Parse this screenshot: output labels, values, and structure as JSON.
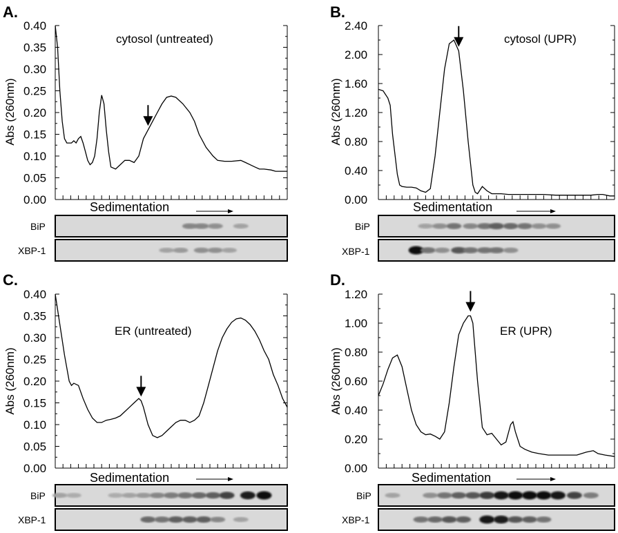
{
  "chart_data": [
    {
      "panel": "A.",
      "type": "line",
      "annotation": "cytosol (untreated)",
      "ylabel": "Abs (260nm)",
      "xlabel": "Sedimentation",
      "ylim": [
        0,
        0.4
      ],
      "yticks": [
        "0.00",
        "0.05",
        "0.10",
        "0.15",
        "0.20",
        "0.25",
        "0.30",
        "0.35",
        "0.40"
      ],
      "xlim": [
        0,
        1
      ],
      "arrow_at": 0.4,
      "x": [
        0.0,
        0.01,
        0.02,
        0.03,
        0.04,
        0.05,
        0.07,
        0.08,
        0.09,
        0.1,
        0.11,
        0.12,
        0.13,
        0.14,
        0.15,
        0.16,
        0.17,
        0.18,
        0.19,
        0.2,
        0.21,
        0.22,
        0.23,
        0.24,
        0.26,
        0.28,
        0.3,
        0.32,
        0.34,
        0.36,
        0.38,
        0.4,
        0.42,
        0.44,
        0.46,
        0.48,
        0.5,
        0.52,
        0.55,
        0.58,
        0.6,
        0.62,
        0.65,
        0.68,
        0.7,
        0.73,
        0.76,
        0.8,
        0.82,
        0.84,
        0.86,
        0.88,
        0.9,
        0.93,
        0.95,
        0.97,
        1.0
      ],
      "y": [
        0.4,
        0.35,
        0.25,
        0.18,
        0.14,
        0.13,
        0.13,
        0.135,
        0.13,
        0.14,
        0.145,
        0.13,
        0.11,
        0.09,
        0.08,
        0.085,
        0.1,
        0.14,
        0.2,
        0.24,
        0.22,
        0.16,
        0.11,
        0.075,
        0.07,
        0.08,
        0.09,
        0.09,
        0.085,
        0.1,
        0.14,
        0.16,
        0.18,
        0.2,
        0.22,
        0.235,
        0.238,
        0.235,
        0.22,
        0.2,
        0.18,
        0.15,
        0.12,
        0.1,
        0.09,
        0.088,
        0.088,
        0.09,
        0.085,
        0.08,
        0.075,
        0.07,
        0.07,
        0.068,
        0.065,
        0.065,
        0.065
      ],
      "blots": [
        {
          "label": "BiP",
          "bands": [
            {
              "x": 0.58,
              "i": 0.35
            },
            {
              "x": 0.63,
              "i": 0.35
            },
            {
              "x": 0.69,
              "i": 0.3
            },
            {
              "x": 0.8,
              "i": 0.2
            }
          ]
        },
        {
          "label": "XBP-1",
          "bands": [
            {
              "x": 0.48,
              "i": 0.2
            },
            {
              "x": 0.54,
              "i": 0.25
            },
            {
              "x": 0.63,
              "i": 0.3
            },
            {
              "x": 0.69,
              "i": 0.3
            },
            {
              "x": 0.75,
              "i": 0.2
            }
          ]
        }
      ]
    },
    {
      "panel": "B.",
      "type": "line",
      "annotation": "cytosol (UPR)",
      "ylabel": "Abs (260nm)",
      "xlabel": "Sedimentation",
      "ylim": [
        0,
        2.4
      ],
      "yticks": [
        "0.00",
        "0.40",
        "0.80",
        "1.20",
        "1.60",
        "2.00",
        "2.40"
      ],
      "xlim": [
        0,
        1
      ],
      "arrow_at": 0.34,
      "x": [
        0.0,
        0.02,
        0.04,
        0.05,
        0.06,
        0.08,
        0.09,
        0.1,
        0.12,
        0.14,
        0.16,
        0.18,
        0.2,
        0.22,
        0.24,
        0.26,
        0.28,
        0.3,
        0.32,
        0.34,
        0.36,
        0.38,
        0.4,
        0.41,
        0.42,
        0.44,
        0.46,
        0.48,
        0.5,
        0.52,
        0.55,
        0.6,
        0.65,
        0.7,
        0.75,
        0.8,
        0.85,
        0.9,
        0.93,
        0.95,
        0.98,
        1.0
      ],
      "y": [
        1.52,
        1.5,
        1.4,
        1.3,
        0.9,
        0.35,
        0.2,
        0.18,
        0.17,
        0.17,
        0.16,
        0.12,
        0.1,
        0.15,
        0.6,
        1.2,
        1.8,
        2.15,
        2.2,
        2.05,
        1.5,
        0.8,
        0.2,
        0.1,
        0.08,
        0.18,
        0.12,
        0.08,
        0.08,
        0.08,
        0.07,
        0.07,
        0.07,
        0.07,
        0.06,
        0.06,
        0.06,
        0.06,
        0.07,
        0.07,
        0.05,
        0.05
      ],
      "blots": [
        {
          "label": "BiP",
          "bands": [
            {
              "x": 0.2,
              "i": 0.2
            },
            {
              "x": 0.26,
              "i": 0.3
            },
            {
              "x": 0.32,
              "i": 0.45
            },
            {
              "x": 0.39,
              "i": 0.35
            },
            {
              "x": 0.45,
              "i": 0.45
            },
            {
              "x": 0.5,
              "i": 0.55
            },
            {
              "x": 0.56,
              "i": 0.5
            },
            {
              "x": 0.62,
              "i": 0.45
            },
            {
              "x": 0.68,
              "i": 0.3
            },
            {
              "x": 0.74,
              "i": 0.3
            }
          ]
        },
        {
          "label": "XBP-1",
          "bands": [
            {
              "x": 0.16,
              "i": 1.0
            },
            {
              "x": 0.21,
              "i": 0.45
            },
            {
              "x": 0.27,
              "i": 0.3
            },
            {
              "x": 0.34,
              "i": 0.6
            },
            {
              "x": 0.39,
              "i": 0.45
            },
            {
              "x": 0.45,
              "i": 0.45
            },
            {
              "x": 0.5,
              "i": 0.45
            },
            {
              "x": 0.56,
              "i": 0.3
            }
          ]
        }
      ]
    },
    {
      "panel": "C.",
      "type": "line",
      "annotation": "ER (untreated)",
      "ylabel": "Abs (260nm)",
      "xlabel": "Sedimentation",
      "ylim": [
        0,
        0.4
      ],
      "yticks": [
        "0.00",
        "0.05",
        "0.10",
        "0.15",
        "0.20",
        "0.25",
        "0.30",
        "0.35",
        "0.40"
      ],
      "xlim": [
        0,
        1
      ],
      "arrow_at": 0.37,
      "x": [
        0.0,
        0.02,
        0.04,
        0.06,
        0.07,
        0.08,
        0.1,
        0.12,
        0.14,
        0.16,
        0.18,
        0.2,
        0.22,
        0.24,
        0.26,
        0.28,
        0.3,
        0.32,
        0.34,
        0.36,
        0.37,
        0.38,
        0.4,
        0.42,
        0.44,
        0.46,
        0.48,
        0.5,
        0.52,
        0.54,
        0.56,
        0.58,
        0.6,
        0.62,
        0.64,
        0.66,
        0.68,
        0.7,
        0.72,
        0.74,
        0.76,
        0.78,
        0.8,
        0.82,
        0.84,
        0.86,
        0.88,
        0.9,
        0.92,
        0.94,
        0.96,
        0.98,
        1.0
      ],
      "y": [
        0.4,
        0.33,
        0.26,
        0.2,
        0.19,
        0.195,
        0.19,
        0.16,
        0.135,
        0.115,
        0.105,
        0.105,
        0.11,
        0.112,
        0.115,
        0.12,
        0.13,
        0.14,
        0.15,
        0.16,
        0.155,
        0.14,
        0.1,
        0.075,
        0.07,
        0.075,
        0.085,
        0.095,
        0.105,
        0.11,
        0.11,
        0.105,
        0.11,
        0.12,
        0.15,
        0.19,
        0.23,
        0.27,
        0.3,
        0.32,
        0.335,
        0.343,
        0.345,
        0.34,
        0.33,
        0.315,
        0.295,
        0.27,
        0.25,
        0.215,
        0.19,
        0.16,
        0.14
      ],
      "blots": [
        {
          "label": "BiP",
          "bands": [
            {
              "x": 0.02,
              "i": 0.2
            },
            {
              "x": 0.08,
              "i": 0.15
            },
            {
              "x": 0.26,
              "i": 0.15
            },
            {
              "x": 0.32,
              "i": 0.2
            },
            {
              "x": 0.38,
              "i": 0.25
            },
            {
              "x": 0.44,
              "i": 0.35
            },
            {
              "x": 0.5,
              "i": 0.4
            },
            {
              "x": 0.56,
              "i": 0.45
            },
            {
              "x": 0.62,
              "i": 0.5
            },
            {
              "x": 0.68,
              "i": 0.55
            },
            {
              "x": 0.74,
              "i": 0.7
            },
            {
              "x": 0.83,
              "i": 0.9
            },
            {
              "x": 0.9,
              "i": 1.0
            }
          ]
        },
        {
          "label": "XBP-1",
          "bands": [
            {
              "x": 0.4,
              "i": 0.5
            },
            {
              "x": 0.46,
              "i": 0.45
            },
            {
              "x": 0.52,
              "i": 0.55
            },
            {
              "x": 0.58,
              "i": 0.55
            },
            {
              "x": 0.64,
              "i": 0.55
            },
            {
              "x": 0.7,
              "i": 0.35
            },
            {
              "x": 0.8,
              "i": 0.2
            }
          ]
        }
      ]
    },
    {
      "panel": "D.",
      "type": "line",
      "annotation": "ER (UPR)",
      "ylabel": "Abs (260nm)",
      "xlabel": "Sedimentation",
      "ylim": [
        0,
        1.2
      ],
      "yticks": [
        "0.00",
        "0.20",
        "0.40",
        "0.60",
        "0.80",
        "1.00",
        "1.20"
      ],
      "xlim": [
        0,
        1
      ],
      "arrow_at": 0.39,
      "x": [
        0.0,
        0.02,
        0.04,
        0.06,
        0.08,
        0.1,
        0.12,
        0.14,
        0.16,
        0.18,
        0.2,
        0.22,
        0.24,
        0.26,
        0.28,
        0.3,
        0.32,
        0.34,
        0.36,
        0.38,
        0.39,
        0.4,
        0.42,
        0.44,
        0.46,
        0.48,
        0.5,
        0.52,
        0.54,
        0.56,
        0.57,
        0.58,
        0.6,
        0.62,
        0.65,
        0.68,
        0.72,
        0.76,
        0.8,
        0.84,
        0.88,
        0.91,
        0.93,
        0.96,
        1.0
      ],
      "y": [
        0.5,
        0.58,
        0.68,
        0.76,
        0.78,
        0.7,
        0.55,
        0.4,
        0.3,
        0.25,
        0.23,
        0.235,
        0.22,
        0.2,
        0.25,
        0.45,
        0.7,
        0.92,
        1.0,
        1.05,
        1.05,
        1.0,
        0.6,
        0.28,
        0.23,
        0.24,
        0.2,
        0.16,
        0.18,
        0.3,
        0.32,
        0.25,
        0.15,
        0.13,
        0.11,
        0.1,
        0.09,
        0.09,
        0.09,
        0.09,
        0.11,
        0.12,
        0.1,
        0.09,
        0.08
      ],
      "blots": [
        {
          "label": "BiP",
          "bands": [
            {
              "x": 0.06,
              "i": 0.2
            },
            {
              "x": 0.22,
              "i": 0.3
            },
            {
              "x": 0.28,
              "i": 0.45
            },
            {
              "x": 0.34,
              "i": 0.55
            },
            {
              "x": 0.4,
              "i": 0.6
            },
            {
              "x": 0.46,
              "i": 0.75
            },
            {
              "x": 0.52,
              "i": 0.95
            },
            {
              "x": 0.58,
              "i": 1.0
            },
            {
              "x": 0.64,
              "i": 1.0
            },
            {
              "x": 0.7,
              "i": 1.0
            },
            {
              "x": 0.76,
              "i": 0.95
            },
            {
              "x": 0.83,
              "i": 0.7
            },
            {
              "x": 0.9,
              "i": 0.4
            }
          ]
        },
        {
          "label": "XBP-1",
          "bands": [
            {
              "x": 0.18,
              "i": 0.45
            },
            {
              "x": 0.24,
              "i": 0.5
            },
            {
              "x": 0.3,
              "i": 0.6
            },
            {
              "x": 0.36,
              "i": 0.55
            },
            {
              "x": 0.46,
              "i": 0.95
            },
            {
              "x": 0.52,
              "i": 0.9
            },
            {
              "x": 0.58,
              "i": 0.6
            },
            {
              "x": 0.64,
              "i": 0.55
            },
            {
              "x": 0.7,
              "i": 0.45
            }
          ]
        }
      ]
    }
  ]
}
